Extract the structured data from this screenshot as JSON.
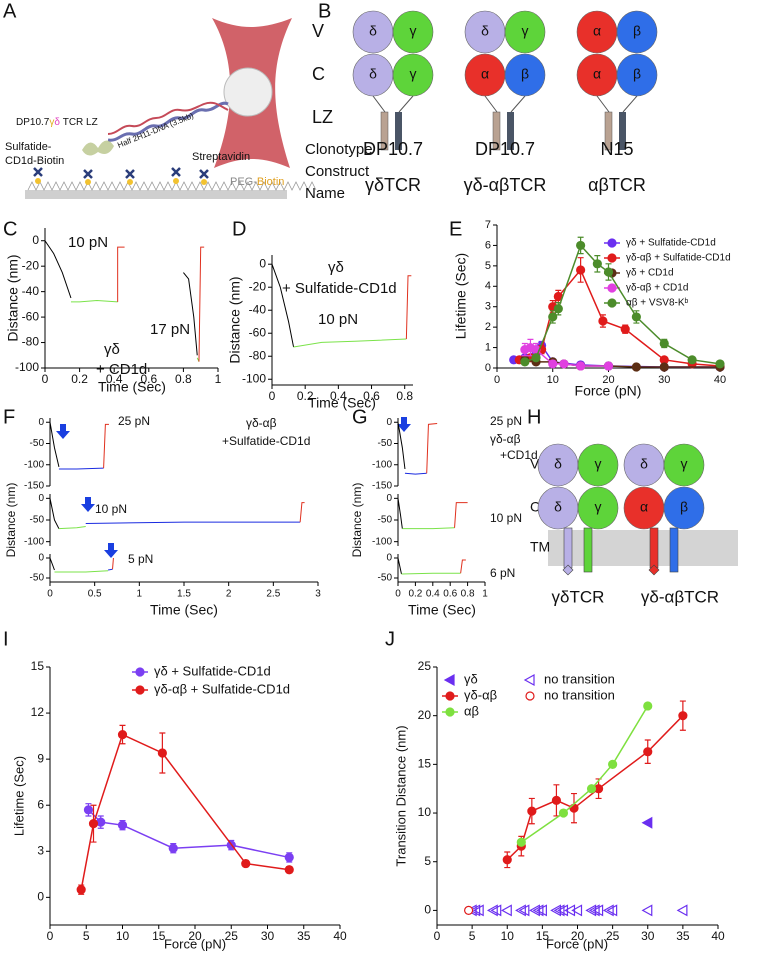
{
  "panels": [
    "A",
    "B",
    "C",
    "D",
    "E",
    "F",
    "G",
    "H",
    "I",
    "J"
  ],
  "figure_a": {
    "construct": [
      "DP10.7",
      "γ",
      "δ",
      " TCR LZ"
    ],
    "dna": "Half 2H11-DNA (3.5kb)",
    "ligand": [
      "Sulfatide-",
      "CD1d-Biotin"
    ],
    "streptavidin": "Streptavidin",
    "surface": [
      "PEG-",
      "Biotin"
    ]
  },
  "figure_b": {
    "rows": [
      "V",
      "C",
      "LZ"
    ],
    "clonotype_label": "Clonotype",
    "construct_label": [
      "Construct",
      "Name"
    ],
    "constructs": [
      {
        "clonotype": "DP10.7",
        "name": "γδTCR",
        "domains": [
          "δ",
          "γ",
          "δ",
          "γ"
        ]
      },
      {
        "clonotype": "DP10.7",
        "name": "γδ-αβTCR",
        "domains": [
          "δ",
          "γ",
          "α",
          "β"
        ]
      },
      {
        "clonotype": "N15",
        "name": "αβTCR",
        "domains": [
          "α",
          "β",
          "α",
          "β"
        ]
      }
    ]
  },
  "figure_h": {
    "rows": [
      "V",
      "C",
      "TM"
    ],
    "constructs": [
      {
        "name": "γδTCR",
        "domains": [
          "δ",
          "γ",
          "δ",
          "γ"
        ]
      },
      {
        "name": "γδ-αβTCR",
        "domains": [
          "δ",
          "γ",
          "α",
          "β"
        ]
      }
    ]
  },
  "chart_data": [
    {
      "type": "line",
      "x_label": "Time (Sec)",
      "y_label": "Distance (nm)",
      "xlim": [
        0,
        1
      ],
      "ylim": [
        -100,
        10
      ],
      "xticks": [
        0,
        0.2,
        0.4,
        0.6,
        0.8,
        1
      ],
      "yticks": [
        0,
        -20,
        -40,
        -60,
        -80,
        -100
      ],
      "annotations": [
        "10 pN",
        "17 pN",
        "γδ",
        "+ CD1d"
      ],
      "series": [
        {
          "color": "#000000",
          "x": [
            0,
            0.05,
            0.1,
            0.15
          ],
          "values": [
            0,
            -10,
            -25,
            -45
          ]
        },
        {
          "color": "#7be34a",
          "x": [
            0.15,
            0.2,
            0.3,
            0.42
          ],
          "values": [
            -48,
            -48,
            -47,
            -48
          ]
        },
        {
          "color": "#e0301e",
          "x": [
            0.42,
            0.42,
            0.46
          ],
          "values": [
            -48,
            -5,
            -5
          ]
        },
        {
          "color": "#000000",
          "x": [
            0.8,
            0.83,
            0.86,
            0.88
          ],
          "values": [
            -25,
            -30,
            -60,
            -90
          ]
        },
        {
          "color": "#7be34a",
          "x": [
            0.88,
            0.89
          ],
          "values": [
            -92,
            -95
          ]
        },
        {
          "color": "#e0301e",
          "x": [
            0.89,
            0.9,
            0.92
          ],
          "values": [
            -95,
            -5,
            -5
          ]
        }
      ]
    },
    {
      "type": "line",
      "x_label": "Time (Sec)",
      "y_label": "Distance (nm)",
      "xlim": [
        0,
        0.85
      ],
      "ylim": [
        -105,
        8
      ],
      "xticks": [
        0,
        0.2,
        0.4,
        0.6,
        0.8
      ],
      "yticks": [
        0,
        -20,
        -40,
        -60,
        -80,
        -100
      ],
      "annotations": [
        "γδ",
        "+ Sulfatide-CD1d",
        "10 pN"
      ],
      "series": [
        {
          "color": "#000000",
          "x": [
            0,
            0.05,
            0.1,
            0.13
          ],
          "values": [
            0,
            -20,
            -50,
            -72
          ]
        },
        {
          "color": "#7be34a",
          "x": [
            0.13,
            0.3,
            0.5,
            0.81
          ],
          "values": [
            -72,
            -68,
            -67,
            -65
          ]
        },
        {
          "color": "#e0301e",
          "x": [
            0.81,
            0.82,
            0.84
          ],
          "values": [
            -65,
            -10,
            -10
          ]
        }
      ]
    },
    {
      "type": "line",
      "x_label": "Force (pN)",
      "y_label": "Lifetime (Sec)",
      "xlim": [
        0,
        40
      ],
      "ylim": [
        0,
        7
      ],
      "xticks": [
        0,
        10,
        20,
        30,
        40
      ],
      "yticks": [
        0,
        1,
        2,
        3,
        4,
        5,
        6,
        7
      ],
      "legend": true,
      "series": [
        {
          "name": "γδ + Sulfatide-CD1d",
          "color": "#6a2ff0",
          "marker": "circle",
          "x": [
            3,
            5,
            7,
            8,
            10,
            15,
            20,
            30,
            40
          ],
          "values": [
            0.4,
            0.5,
            0.7,
            1.1,
            0.3,
            0.15,
            0.1,
            0.05,
            0.05
          ],
          "errors": [
            0.05,
            0.1,
            0.2,
            0.2,
            0.1,
            0.05,
            0.03,
            0.02,
            0.02
          ]
        },
        {
          "name": "γδ-αβ + Sulfatide-CD1d",
          "color": "#e01b1b",
          "marker": "circle",
          "x": [
            4,
            6,
            8,
            10,
            11,
            15,
            19,
            23,
            30,
            35,
            40
          ],
          "values": [
            0.4,
            0.5,
            0.9,
            3.0,
            3.5,
            4.8,
            2.3,
            1.9,
            0.4,
            0.2,
            0.1
          ],
          "errors": [
            0.1,
            0.1,
            0.2,
            0.3,
            0.3,
            0.6,
            0.3,
            0.2,
            0.1,
            0.05,
            0.05
          ]
        },
        {
          "name": "γδ + CD1d",
          "color": "#5c2e14",
          "marker": "circle",
          "x": [
            5,
            7,
            10,
            12,
            15,
            20,
            25,
            30,
            40
          ],
          "values": [
            0.4,
            0.3,
            0.3,
            0.2,
            0.1,
            0.1,
            0.05,
            0.05,
            0.05
          ],
          "errors": [
            0.05,
            0.05,
            0.05,
            0.05,
            0.03,
            0.03,
            0.02,
            0.02,
            0.02
          ]
        },
        {
          "name": "γδ-αβ + CD1d",
          "color": "#e040e0",
          "marker": "circle",
          "x": [
            5,
            6,
            7,
            10,
            12,
            15,
            20
          ],
          "values": [
            0.9,
            1.0,
            0.9,
            0.2,
            0.2,
            0.1,
            0.1
          ],
          "errors": [
            0.3,
            0.4,
            0.3,
            0.1,
            0.05,
            0.05,
            0.03
          ]
        },
        {
          "name": "αβ + VSV8-Kᵇ",
          "color": "#4c8c2b",
          "marker": "circle",
          "x": [
            5,
            7,
            10,
            11,
            15,
            18,
            20,
            25,
            30,
            35,
            40
          ],
          "values": [
            0.3,
            0.5,
            2.5,
            2.9,
            6.0,
            5.1,
            4.7,
            2.5,
            1.2,
            0.4,
            0.2
          ],
          "errors": [
            0.05,
            0.1,
            0.3,
            0.3,
            0.4,
            0.4,
            0.4,
            0.3,
            0.2,
            0.1,
            0.05
          ]
        }
      ]
    },
    {
      "type": "line",
      "xlim": [
        0,
        3
      ],
      "ylim": [
        -150,
        10
      ],
      "yticks": [
        0,
        -50,
        -100,
        -150
      ],
      "annotations": [
        "25 pN",
        "γδ-αβ",
        "+Sulfatide-CD1d"
      ],
      "series": [
        {
          "color": "#000000",
          "x": [
            0,
            0.05,
            0.1
          ],
          "values": [
            0,
            -60,
            -105
          ]
        },
        {
          "color": "#1a2be0",
          "x": [
            0.1,
            0.3,
            0.6
          ],
          "values": [
            -110,
            -110,
            -108
          ]
        },
        {
          "color": "#e0301e",
          "x": [
            0.6,
            0.62,
            0.66
          ],
          "values": [
            -108,
            -5,
            -5
          ]
        }
      ]
    },
    {
      "type": "line",
      "y_label": "Distance (nm)",
      "xlim": [
        0,
        3
      ],
      "ylim": [
        -110,
        10
      ],
      "yticks": [
        0,
        -50,
        -100
      ],
      "annotations": [
        "10 pN"
      ],
      "series": [
        {
          "color": "#000000",
          "x": [
            0,
            0.05,
            0.1
          ],
          "values": [
            0,
            -50,
            -70
          ]
        },
        {
          "color": "#7be34a",
          "x": [
            0.1,
            0.3,
            0.4
          ],
          "values": [
            -70,
            -68,
            -65
          ]
        },
        {
          "color": "#1a2be0",
          "x": [
            0.4,
            1.5,
            2.8
          ],
          "values": [
            -58,
            -55,
            -55
          ]
        },
        {
          "color": "#e0301e",
          "x": [
            2.8,
            2.82,
            2.85
          ],
          "values": [
            -55,
            -10,
            -10
          ]
        }
      ]
    },
    {
      "type": "line",
      "x_label": "Time (Sec)",
      "xlim": [
        0,
        3
      ],
      "ylim": [
        -60,
        10
      ],
      "xticks": [
        0,
        0.5,
        1,
        1.5,
        2,
        2.5,
        3
      ],
      "yticks": [
        0,
        -50
      ],
      "annotations": [
        "5 pN"
      ],
      "series": [
        {
          "color": "#000000",
          "x": [
            0,
            0.05
          ],
          "values": [
            0,
            -30
          ]
        },
        {
          "color": "#7be34a",
          "x": [
            0.05,
            0.4,
            0.65
          ],
          "values": [
            -35,
            -35,
            -32
          ]
        },
        {
          "color": "#1a2be0",
          "x": [
            0.65,
            0.7
          ],
          "values": [
            -30,
            -28
          ]
        },
        {
          "color": "#e0301e",
          "x": [
            0.7,
            0.71
          ],
          "values": [
            -28,
            0
          ]
        }
      ]
    },
    {
      "type": "line",
      "xlim": [
        0,
        1
      ],
      "ylim": [
        -150,
        10
      ],
      "yticks": [
        0,
        -50,
        -100,
        -150
      ],
      "annotations": [
        "25 pN",
        "γδ-αβ",
        "+CD1d"
      ],
      "series": [
        {
          "color": "#000000",
          "x": [
            0,
            0.05,
            0.08
          ],
          "values": [
            0,
            -60,
            -110
          ]
        },
        {
          "color": "#1a2be0",
          "x": [
            0.08,
            0.2,
            0.33
          ],
          "values": [
            -120,
            -122,
            -120
          ]
        },
        {
          "color": "#e0301e",
          "x": [
            0.33,
            0.35,
            0.45
          ],
          "values": [
            -120,
            -5,
            -3
          ]
        }
      ]
    },
    {
      "type": "line",
      "y_label": "Distance (nm)",
      "xlim": [
        0,
        1
      ],
      "ylim": [
        -110,
        10
      ],
      "yticks": [
        0,
        -50,
        -100
      ],
      "annotations": [
        "10 pN"
      ],
      "series": [
        {
          "color": "#000000",
          "x": [
            0,
            0.03,
            0.05
          ],
          "values": [
            0,
            -40,
            -70
          ]
        },
        {
          "color": "#7be34a",
          "x": [
            0.05,
            0.4,
            0.65
          ],
          "values": [
            -70,
            -70,
            -68
          ]
        },
        {
          "color": "#e0301e",
          "x": [
            0.65,
            0.67,
            0.8
          ],
          "values": [
            -68,
            -10,
            -10
          ]
        }
      ]
    },
    {
      "type": "line",
      "x_label": "Time (Sec)",
      "xlim": [
        0,
        1
      ],
      "ylim": [
        -60,
        10
      ],
      "xticks": [
        0,
        0.2,
        0.4,
        0.6,
        0.8,
        1
      ],
      "yticks": [
        0,
        -50
      ],
      "annotations": [
        "6 pN"
      ],
      "series": [
        {
          "color": "#000000",
          "x": [
            0,
            0.02,
            0.04
          ],
          "values": [
            0,
            -20,
            -40
          ]
        },
        {
          "color": "#7be34a",
          "x": [
            0.04,
            0.4,
            0.72
          ],
          "values": [
            -40,
            -38,
            -38
          ]
        },
        {
          "color": "#e0301e",
          "x": [
            0.72,
            0.74,
            0.78
          ],
          "values": [
            -38,
            -5,
            -5
          ]
        }
      ]
    },
    {
      "type": "line",
      "x_label": "Force (pN)",
      "y_label": "Lifetime (Sec)",
      "xlim": [
        0,
        40
      ],
      "ylim": [
        -1.8,
        15
      ],
      "xticks": [
        0,
        5,
        10,
        15,
        20,
        25,
        30,
        35,
        40
      ],
      "yticks": [
        0,
        3,
        6,
        9,
        12,
        15
      ],
      "legend": true,
      "series": [
        {
          "name": "γδ + Sulfatide-CD1d",
          "color": "#7b3ff2",
          "marker": "circle",
          "x": [
            5.3,
            7,
            10,
            17,
            25,
            33
          ],
          "values": [
            5.7,
            4.9,
            4.7,
            3.2,
            3.4,
            2.6
          ],
          "errors": [
            0.4,
            0.4,
            0.3,
            0.3,
            0.3,
            0.3
          ]
        },
        {
          "name": "γδ-αβ + Sulfatide-CD1d",
          "color": "#e01b1b",
          "marker": "circle",
          "x": [
            4.3,
            6,
            10,
            15.5,
            27,
            33
          ],
          "values": [
            0.5,
            4.8,
            10.6,
            9.4,
            2.2,
            1.8
          ],
          "errors": [
            0.3,
            1.2,
            0.6,
            1.3,
            0.2,
            0.2
          ]
        }
      ]
    },
    {
      "type": "line",
      "x_label": "Force (pN)",
      "y_label": "Transition Distance (nm)",
      "xlim": [
        0,
        40
      ],
      "ylim": [
        -1.5,
        25
      ],
      "xticks": [
        0,
        5,
        10,
        15,
        20,
        25,
        30,
        35,
        40
      ],
      "yticks": [
        0,
        5,
        10,
        15,
        20,
        25
      ],
      "legend": true,
      "series": [
        {
          "name": "γδ",
          "color": "#6a2ff0",
          "marker": "triangle-left",
          "line": false,
          "x": [
            30
          ],
          "values": [
            9
          ]
        },
        {
          "name": "γδ-αβ",
          "color": "#e01b1b",
          "marker": "circle",
          "x": [
            10,
            12,
            13.5,
            17,
            19.5,
            23,
            30,
            35
          ],
          "values": [
            5.2,
            6.6,
            10.2,
            11.3,
            10.5,
            12.5,
            16.3,
            20
          ],
          "errors": [
            0.8,
            1,
            1.3,
            1.6,
            1.5,
            1,
            1.2,
            1.5
          ]
        },
        {
          "name": "αβ",
          "color": "#7ee03f",
          "marker": "circle",
          "x": [
            12,
            18,
            22,
            25,
            30
          ],
          "values": [
            7,
            10,
            12.5,
            15,
            21
          ]
        },
        {
          "name": "no transition",
          "color": "#6a2ff0",
          "marker": "triangle-left-open",
          "line": false,
          "x": [
            5,
            5.5,
            6,
            8,
            8.5,
            10,
            12,
            12.5,
            14,
            14.5,
            15,
            17,
            17.5,
            18,
            19,
            20,
            22,
            22.5,
            23,
            24.5,
            25,
            30,
            35
          ],
          "values": [
            0,
            0,
            0,
            0,
            0,
            0,
            0,
            0,
            0,
            0,
            0,
            0,
            0,
            0,
            0,
            0,
            0,
            0,
            0,
            0,
            0,
            0,
            0
          ]
        },
        {
          "name": "no transition",
          "color": "#e01b1b",
          "marker": "circle-open",
          "line": false,
          "x": [
            4.5
          ],
          "values": [
            0
          ]
        }
      ]
    }
  ]
}
